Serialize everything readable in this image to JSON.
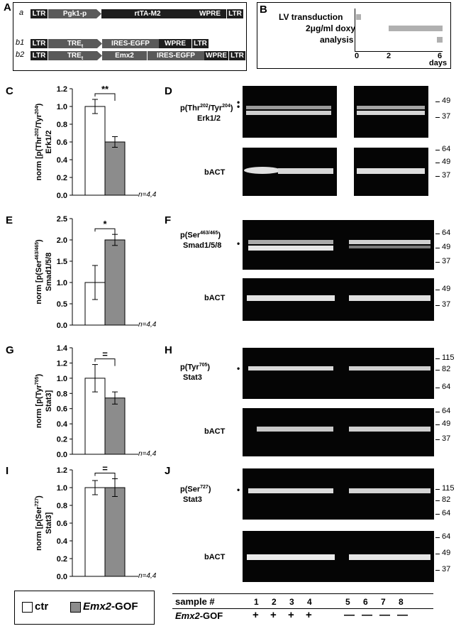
{
  "panels": {
    "A": "A",
    "B": "B",
    "C": "C",
    "D": "D",
    "E": "E",
    "F": "F",
    "G": "G",
    "H": "H",
    "I": "I",
    "J": "J"
  },
  "constructs": {
    "a": {
      "label": "a",
      "ltr1": "LTR",
      "promoter": "Pgk1-p",
      "gene": "rtTA-M2",
      "wpre": "WPRE",
      "ltr2": "LTR"
    },
    "b1": {
      "label": "b1",
      "ltr1": "LTR",
      "promoter": "TRE",
      "promoter_sub": "t",
      "gene": "IRES-EGFP",
      "wpre": "WPRE",
      "ltr2": "LTR"
    },
    "b2": {
      "label": "b2",
      "ltr1": "LTR",
      "promoter": "TRE",
      "promoter_sub": "t",
      "gene": "Emx2",
      "gene2": "IRES-EGFP",
      "wpre": "WPRE",
      "ltr2": "LTR"
    }
  },
  "timeline": {
    "rows": [
      "LV transduction",
      "2μg/ml doxy",
      "analysis"
    ],
    "ticks": [
      "0",
      "2",
      "6"
    ],
    "unit": "days"
  },
  "chart_data": [
    {
      "type": "bar",
      "panel": "C",
      "categories": [
        "ctr",
        "Emx2-GOF"
      ],
      "values": [
        1.0,
        0.6
      ],
      "errors": [
        0.08,
        0.06
      ],
      "ylim": [
        0,
        1.2
      ],
      "yticks": [
        "0.0",
        "0.2",
        "0.4",
        "0.6",
        "0.8",
        "1.0",
        "1.2"
      ],
      "ylabel_line1": "norm [p(Thr",
      "ylabel_sup1": "202",
      "ylabel_mid": "/Tyr",
      "ylabel_sup2": "204",
      "ylabel_end": ")",
      "ylabel_line2": "Erk1/2",
      "sig": "**",
      "n": "n=4,4"
    },
    {
      "type": "bar",
      "panel": "E",
      "categories": [
        "ctr",
        "Emx2-GOF"
      ],
      "values": [
        1.0,
        2.0
      ],
      "errors": [
        0.4,
        0.13
      ],
      "ylim": [
        0,
        2.5
      ],
      "yticks": [
        "0.0",
        "0.5",
        "1.0",
        "1.5",
        "2.0",
        "2.5"
      ],
      "ylabel_line1": "norm [p(Ser",
      "ylabel_sup1": "463/465",
      "ylabel_mid": "",
      "ylabel_sup2": "",
      "ylabel_end": ")",
      "ylabel_line2": "Smad1/5/8",
      "sig": "*",
      "n": "n=4,4"
    },
    {
      "type": "bar",
      "panel": "G",
      "categories": [
        "ctr",
        "Emx2-GOF"
      ],
      "values": [
        1.0,
        0.74
      ],
      "errors": [
        0.18,
        0.08
      ],
      "ylim": [
        0,
        1.4
      ],
      "yticks": [
        "0.0",
        "0.2",
        "0.4",
        "0.6",
        "0.8",
        "1.0",
        "1.2",
        "1.4"
      ],
      "ylabel_line1": "norm [p(Tyr",
      "ylabel_sup1": "705",
      "ylabel_mid": "",
      "ylabel_sup2": "",
      "ylabel_end": ")",
      "ylabel_line2": "Stat3]",
      "sig": "=",
      "n": "n=4,4"
    },
    {
      "type": "bar",
      "panel": "I",
      "categories": [
        "ctr",
        "Emx2-GOF"
      ],
      "values": [
        1.0,
        1.0
      ],
      "errors": [
        0.08,
        0.1
      ],
      "ylim": [
        0,
        1.2
      ],
      "yticks": [
        "0.0",
        "0.2",
        "0.4",
        "0.6",
        "0.8",
        "1.0",
        "1.2"
      ],
      "ylabel_line1": "norm [p(Ser",
      "ylabel_sup1": "727",
      "ylabel_mid": "",
      "ylabel_sup2": "",
      "ylabel_end": ")",
      "ylabel_line2": "Stat3]",
      "sig": "=",
      "n": "n=4,4"
    }
  ],
  "blots": {
    "D1": {
      "label_a": "p(Thr",
      "sup_a": "202",
      "label_b": "/Tyr",
      "sup_b": "204",
      "label_c": ")",
      "label2": "Erk1/2",
      "markers": [
        "49",
        "37"
      ]
    },
    "D2": {
      "label": "bACT",
      "markers": [
        "64",
        "49",
        "37"
      ]
    },
    "F1": {
      "label_a": "p(Ser",
      "sup_a": "463/465",
      "label_c": ")",
      "label2": "Smad1/5/8",
      "markers": [
        "64",
        "49",
        "37"
      ]
    },
    "F2": {
      "label": "bACT",
      "markers": [
        "49",
        "37"
      ]
    },
    "H1": {
      "label_a": "p(Tyr",
      "sup_a": "705",
      "label_c": ")",
      "label2": "Stat3",
      "markers": [
        "115",
        "82",
        "64"
      ]
    },
    "H2": {
      "label": "bACT",
      "markers": [
        "64",
        "49",
        "37"
      ]
    },
    "J1": {
      "label_a": "p(Ser",
      "sup_a": "727",
      "label_c": ")",
      "label2": "Stat3",
      "markers": [
        "115",
        "82",
        "64"
      ]
    },
    "J2": {
      "label": "bACT",
      "markers": [
        "64",
        "49",
        "37"
      ]
    }
  },
  "legend": {
    "ctr": "ctr",
    "gof_italic": "Emx2",
    "gof_suffix": "-GOF"
  },
  "sample_table": {
    "header": "sample #",
    "samples": [
      "1",
      "2",
      "3",
      "4",
      "5",
      "6",
      "7",
      "8"
    ],
    "row_label_italic": "Emx2",
    "row_label_suffix": "-GOF",
    "signs": [
      "+",
      "+",
      "+",
      "+",
      "—",
      "—",
      "—",
      "—"
    ]
  },
  "colors": {
    "ctr": "#ffffff",
    "gof": "#8c8c8c",
    "gray_bar": "#b0b0b0"
  }
}
